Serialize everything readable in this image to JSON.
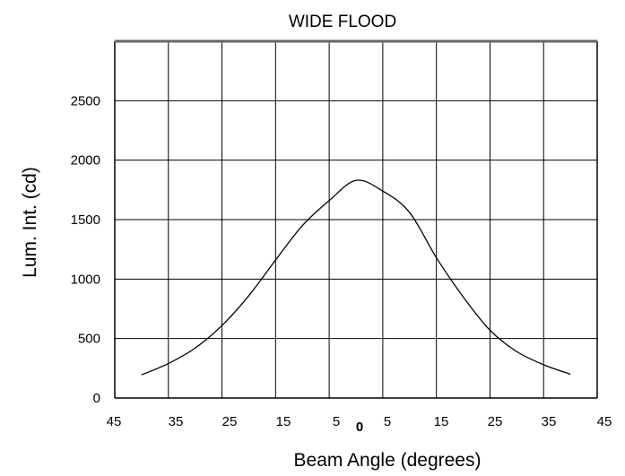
{
  "chart_data": {
    "type": "line",
    "title": "WIDE FLOOD",
    "xlabel": "Beam Angle (degrees)",
    "ylabel": "Lum. Int. (cd)",
    "x_tick_labels": [
      "45",
      "35",
      "25",
      "15",
      "5",
      "0",
      "5",
      "15",
      "25",
      "35",
      "45"
    ],
    "y_ticks": [
      0,
      500,
      1000,
      1500,
      2000,
      2500
    ],
    "y_tick_labels": [
      "0",
      "500",
      "1000",
      "1500",
      "2000",
      "2500"
    ],
    "xlim": [
      -45,
      45
    ],
    "ylim": [
      0,
      3000
    ],
    "grid": true,
    "series": [
      {
        "x": [
          -40,
          -35,
          -30,
          -25,
          -20,
          -15,
          -10,
          -5,
          0,
          5,
          10,
          15,
          20,
          25,
          30,
          35,
          40
        ],
        "values": [
          195,
          290,
          420,
          610,
          860,
          1160,
          1450,
          1660,
          1830,
          1740,
          1560,
          1180,
          850,
          570,
          390,
          280,
          200
        ]
      }
    ],
    "colors": {
      "line": "#000000",
      "grid": "#000000",
      "background": "#ffffff"
    }
  }
}
